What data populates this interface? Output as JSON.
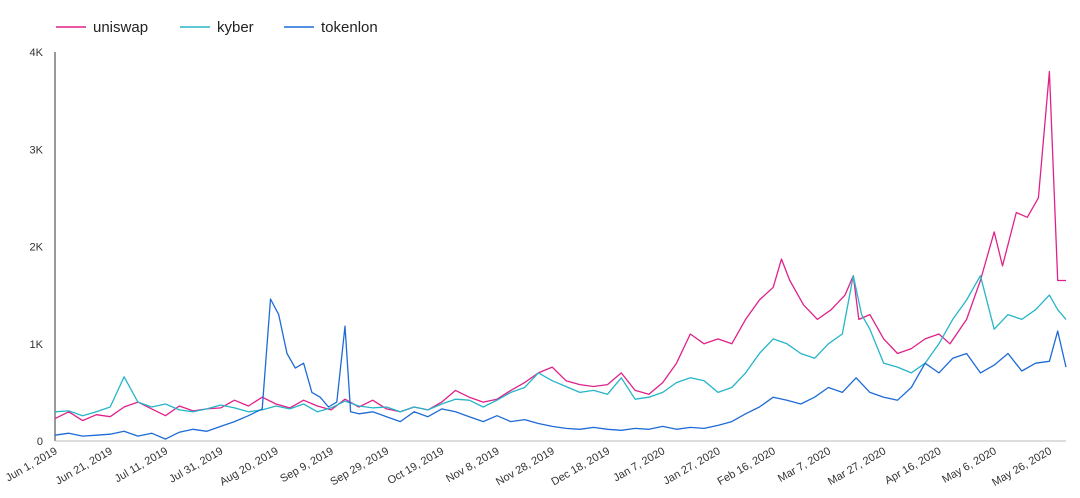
{
  "chart_data": {
    "type": "line",
    "title": "",
    "xlabel": "",
    "ylabel": "",
    "x_range": [
      "2019-06-01",
      "2020-06-01"
    ],
    "ylim": [
      0,
      4000
    ],
    "y_ticks": [
      {
        "value": 0,
        "label": "0"
      },
      {
        "value": 1000,
        "label": "1K"
      },
      {
        "value": 2000,
        "label": "2K"
      },
      {
        "value": 3000,
        "label": "3K"
      },
      {
        "value": 4000,
        "label": "4K"
      }
    ],
    "x_ticks": [
      {
        "date": "2019-06-01",
        "label": "Jun 1, 2019"
      },
      {
        "date": "2019-06-21",
        "label": "Jun 21, 2019"
      },
      {
        "date": "2019-07-11",
        "label": "Jul 11, 2019"
      },
      {
        "date": "2019-07-31",
        "label": "Jul 31, 2019"
      },
      {
        "date": "2019-08-20",
        "label": "Aug 20, 2019"
      },
      {
        "date": "2019-09-09",
        "label": "Sep 9, 2019"
      },
      {
        "date": "2019-09-29",
        "label": "Sep 29, 2019"
      },
      {
        "date": "2019-10-19",
        "label": "Oct 19, 2019"
      },
      {
        "date": "2019-11-08",
        "label": "Nov 8, 2019"
      },
      {
        "date": "2019-11-28",
        "label": "Nov 28, 2019"
      },
      {
        "date": "2019-12-18",
        "label": "Dec 18, 2019"
      },
      {
        "date": "2020-01-07",
        "label": "Jan 7, 2020"
      },
      {
        "date": "2020-01-27",
        "label": "Jan 27, 2020"
      },
      {
        "date": "2020-02-16",
        "label": "Feb 16, 2020"
      },
      {
        "date": "2020-03-07",
        "label": "Mar 7, 2020"
      },
      {
        "date": "2020-03-27",
        "label": "Mar 27, 2020"
      },
      {
        "date": "2020-04-16",
        "label": "Apr 16, 2020"
      },
      {
        "date": "2020-05-06",
        "label": "May 6, 2020"
      },
      {
        "date": "2020-05-26",
        "label": "May 26, 2020"
      }
    ],
    "grid": false,
    "legend_position": "top-left",
    "series": [
      {
        "name": "uniswap",
        "color": "#e0218a",
        "points": [
          [
            "2019-06-01",
            230
          ],
          [
            "2019-06-06",
            300
          ],
          [
            "2019-06-11",
            210
          ],
          [
            "2019-06-16",
            270
          ],
          [
            "2019-06-21",
            250
          ],
          [
            "2019-06-26",
            350
          ],
          [
            "2019-07-01",
            400
          ],
          [
            "2019-07-06",
            330
          ],
          [
            "2019-07-11",
            260
          ],
          [
            "2019-07-16",
            360
          ],
          [
            "2019-07-21",
            310
          ],
          [
            "2019-07-26",
            330
          ],
          [
            "2019-07-31",
            340
          ],
          [
            "2019-08-05",
            420
          ],
          [
            "2019-08-10",
            360
          ],
          [
            "2019-08-15",
            450
          ],
          [
            "2019-08-20",
            380
          ],
          [
            "2019-08-25",
            340
          ],
          [
            "2019-08-30",
            420
          ],
          [
            "2019-09-04",
            360
          ],
          [
            "2019-09-09",
            320
          ],
          [
            "2019-09-14",
            430
          ],
          [
            "2019-09-19",
            350
          ],
          [
            "2019-09-24",
            420
          ],
          [
            "2019-09-29",
            330
          ],
          [
            "2019-10-04",
            300
          ],
          [
            "2019-10-09",
            350
          ],
          [
            "2019-10-14",
            320
          ],
          [
            "2019-10-19",
            400
          ],
          [
            "2019-10-24",
            520
          ],
          [
            "2019-10-29",
            450
          ],
          [
            "2019-11-03",
            400
          ],
          [
            "2019-11-08",
            430
          ],
          [
            "2019-11-13",
            520
          ],
          [
            "2019-11-18",
            600
          ],
          [
            "2019-11-23",
            700
          ],
          [
            "2019-11-28",
            760
          ],
          [
            "2019-12-03",
            620
          ],
          [
            "2019-12-08",
            580
          ],
          [
            "2019-12-13",
            560
          ],
          [
            "2019-12-18",
            580
          ],
          [
            "2019-12-23",
            700
          ],
          [
            "2019-12-28",
            520
          ],
          [
            "2020-01-02",
            480
          ],
          [
            "2020-01-07",
            600
          ],
          [
            "2020-01-12",
            800
          ],
          [
            "2020-01-17",
            1100
          ],
          [
            "2020-01-22",
            1000
          ],
          [
            "2020-01-27",
            1050
          ],
          [
            "2020-02-01",
            1000
          ],
          [
            "2020-02-06",
            1250
          ],
          [
            "2020-02-11",
            1450
          ],
          [
            "2020-02-16",
            1580
          ],
          [
            "2020-02-19",
            1870
          ],
          [
            "2020-02-22",
            1650
          ],
          [
            "2020-02-27",
            1400
          ],
          [
            "2020-03-03",
            1250
          ],
          [
            "2020-03-08",
            1350
          ],
          [
            "2020-03-13",
            1500
          ],
          [
            "2020-03-16",
            1700
          ],
          [
            "2020-03-18",
            1250
          ],
          [
            "2020-03-22",
            1300
          ],
          [
            "2020-03-27",
            1050
          ],
          [
            "2020-04-01",
            900
          ],
          [
            "2020-04-06",
            950
          ],
          [
            "2020-04-11",
            1050
          ],
          [
            "2020-04-16",
            1100
          ],
          [
            "2020-04-20",
            1000
          ],
          [
            "2020-04-26",
            1250
          ],
          [
            "2020-05-01",
            1650
          ],
          [
            "2020-05-06",
            2150
          ],
          [
            "2020-05-09",
            1800
          ],
          [
            "2020-05-14",
            2350
          ],
          [
            "2020-05-18",
            2300
          ],
          [
            "2020-05-22",
            2500
          ],
          [
            "2020-05-26",
            3800
          ],
          [
            "2020-05-29",
            1650
          ],
          [
            "2020-06-01",
            1650
          ]
        ]
      },
      {
        "name": "kyber",
        "color": "#26b5c9",
        "points": [
          [
            "2019-06-01",
            300
          ],
          [
            "2019-06-06",
            310
          ],
          [
            "2019-06-11",
            260
          ],
          [
            "2019-06-16",
            300
          ],
          [
            "2019-06-21",
            350
          ],
          [
            "2019-06-26",
            660
          ],
          [
            "2019-07-01",
            400
          ],
          [
            "2019-07-06",
            350
          ],
          [
            "2019-07-11",
            380
          ],
          [
            "2019-07-16",
            320
          ],
          [
            "2019-07-21",
            300
          ],
          [
            "2019-07-26",
            330
          ],
          [
            "2019-07-31",
            370
          ],
          [
            "2019-08-05",
            340
          ],
          [
            "2019-08-10",
            300
          ],
          [
            "2019-08-15",
            320
          ],
          [
            "2019-08-20",
            360
          ],
          [
            "2019-08-25",
            330
          ],
          [
            "2019-08-30",
            380
          ],
          [
            "2019-09-04",
            300
          ],
          [
            "2019-09-09",
            340
          ],
          [
            "2019-09-14",
            410
          ],
          [
            "2019-09-19",
            360
          ],
          [
            "2019-09-24",
            340
          ],
          [
            "2019-09-29",
            350
          ],
          [
            "2019-10-04",
            300
          ],
          [
            "2019-10-09",
            350
          ],
          [
            "2019-10-14",
            320
          ],
          [
            "2019-10-19",
            380
          ],
          [
            "2019-10-24",
            430
          ],
          [
            "2019-10-29",
            420
          ],
          [
            "2019-11-03",
            350
          ],
          [
            "2019-11-08",
            420
          ],
          [
            "2019-11-13",
            500
          ],
          [
            "2019-11-18",
            550
          ],
          [
            "2019-11-23",
            700
          ],
          [
            "2019-11-28",
            620
          ],
          [
            "2019-12-03",
            560
          ],
          [
            "2019-12-08",
            500
          ],
          [
            "2019-12-13",
            520
          ],
          [
            "2019-12-18",
            480
          ],
          [
            "2019-12-23",
            650
          ],
          [
            "2019-12-28",
            430
          ],
          [
            "2020-01-02",
            450
          ],
          [
            "2020-01-07",
            500
          ],
          [
            "2020-01-12",
            600
          ],
          [
            "2020-01-17",
            650
          ],
          [
            "2020-01-22",
            620
          ],
          [
            "2020-01-27",
            500
          ],
          [
            "2020-02-01",
            550
          ],
          [
            "2020-02-06",
            700
          ],
          [
            "2020-02-11",
            900
          ],
          [
            "2020-02-16",
            1050
          ],
          [
            "2020-02-21",
            1000
          ],
          [
            "2020-02-26",
            900
          ],
          [
            "2020-03-02",
            850
          ],
          [
            "2020-03-07",
            1000
          ],
          [
            "2020-03-12",
            1100
          ],
          [
            "2020-03-16",
            1700
          ],
          [
            "2020-03-19",
            1300
          ],
          [
            "2020-03-22",
            1150
          ],
          [
            "2020-03-27",
            800
          ],
          [
            "2020-04-01",
            760
          ],
          [
            "2020-04-06",
            700
          ],
          [
            "2020-04-11",
            800
          ],
          [
            "2020-04-16",
            1000
          ],
          [
            "2020-04-21",
            1250
          ],
          [
            "2020-04-26",
            1450
          ],
          [
            "2020-05-01",
            1700
          ],
          [
            "2020-05-06",
            1150
          ],
          [
            "2020-05-11",
            1300
          ],
          [
            "2020-05-16",
            1250
          ],
          [
            "2020-05-21",
            1350
          ],
          [
            "2020-05-26",
            1500
          ],
          [
            "2020-05-29",
            1350
          ],
          [
            "2020-06-01",
            1250
          ]
        ]
      },
      {
        "name": "tokenlon",
        "color": "#1e6bd6",
        "points": [
          [
            "2019-06-01",
            60
          ],
          [
            "2019-06-06",
            80
          ],
          [
            "2019-06-11",
            50
          ],
          [
            "2019-06-16",
            60
          ],
          [
            "2019-06-21",
            70
          ],
          [
            "2019-06-26",
            100
          ],
          [
            "2019-07-01",
            50
          ],
          [
            "2019-07-06",
            80
          ],
          [
            "2019-07-11",
            20
          ],
          [
            "2019-07-16",
            90
          ],
          [
            "2019-07-21",
            120
          ],
          [
            "2019-07-26",
            100
          ],
          [
            "2019-07-31",
            150
          ],
          [
            "2019-08-05",
            200
          ],
          [
            "2019-08-10",
            260
          ],
          [
            "2019-08-15",
            330
          ],
          [
            "2019-08-18",
            1460
          ],
          [
            "2019-08-21",
            1300
          ],
          [
            "2019-08-24",
            900
          ],
          [
            "2019-08-27",
            750
          ],
          [
            "2019-08-30",
            800
          ],
          [
            "2019-09-02",
            500
          ],
          [
            "2019-09-05",
            450
          ],
          [
            "2019-09-08",
            350
          ],
          [
            "2019-09-11",
            400
          ],
          [
            "2019-09-14",
            1180
          ],
          [
            "2019-09-16",
            300
          ],
          [
            "2019-09-19",
            280
          ],
          [
            "2019-09-24",
            300
          ],
          [
            "2019-09-29",
            250
          ],
          [
            "2019-10-04",
            200
          ],
          [
            "2019-10-09",
            300
          ],
          [
            "2019-10-14",
            250
          ],
          [
            "2019-10-19",
            330
          ],
          [
            "2019-10-24",
            300
          ],
          [
            "2019-10-29",
            250
          ],
          [
            "2019-11-03",
            200
          ],
          [
            "2019-11-08",
            260
          ],
          [
            "2019-11-13",
            200
          ],
          [
            "2019-11-18",
            220
          ],
          [
            "2019-11-23",
            180
          ],
          [
            "2019-11-28",
            150
          ],
          [
            "2019-12-03",
            130
          ],
          [
            "2019-12-08",
            120
          ],
          [
            "2019-12-13",
            140
          ],
          [
            "2019-12-18",
            120
          ],
          [
            "2019-12-23",
            110
          ],
          [
            "2019-12-28",
            130
          ],
          [
            "2020-01-02",
            120
          ],
          [
            "2020-01-07",
            150
          ],
          [
            "2020-01-12",
            120
          ],
          [
            "2020-01-17",
            140
          ],
          [
            "2020-01-22",
            130
          ],
          [
            "2020-01-27",
            160
          ],
          [
            "2020-02-01",
            200
          ],
          [
            "2020-02-06",
            280
          ],
          [
            "2020-02-11",
            350
          ],
          [
            "2020-02-16",
            450
          ],
          [
            "2020-02-21",
            420
          ],
          [
            "2020-02-26",
            380
          ],
          [
            "2020-03-02",
            450
          ],
          [
            "2020-03-07",
            550
          ],
          [
            "2020-03-12",
            500
          ],
          [
            "2020-03-17",
            650
          ],
          [
            "2020-03-22",
            500
          ],
          [
            "2020-03-27",
            450
          ],
          [
            "2020-04-01",
            420
          ],
          [
            "2020-04-06",
            550
          ],
          [
            "2020-04-11",
            800
          ],
          [
            "2020-04-16",
            700
          ],
          [
            "2020-04-21",
            850
          ],
          [
            "2020-04-26",
            900
          ],
          [
            "2020-05-01",
            700
          ],
          [
            "2020-05-06",
            780
          ],
          [
            "2020-05-11",
            900
          ],
          [
            "2020-05-16",
            720
          ],
          [
            "2020-05-21",
            800
          ],
          [
            "2020-05-26",
            820
          ],
          [
            "2020-05-29",
            1130
          ],
          [
            "2020-06-01",
            760
          ]
        ]
      }
    ]
  }
}
